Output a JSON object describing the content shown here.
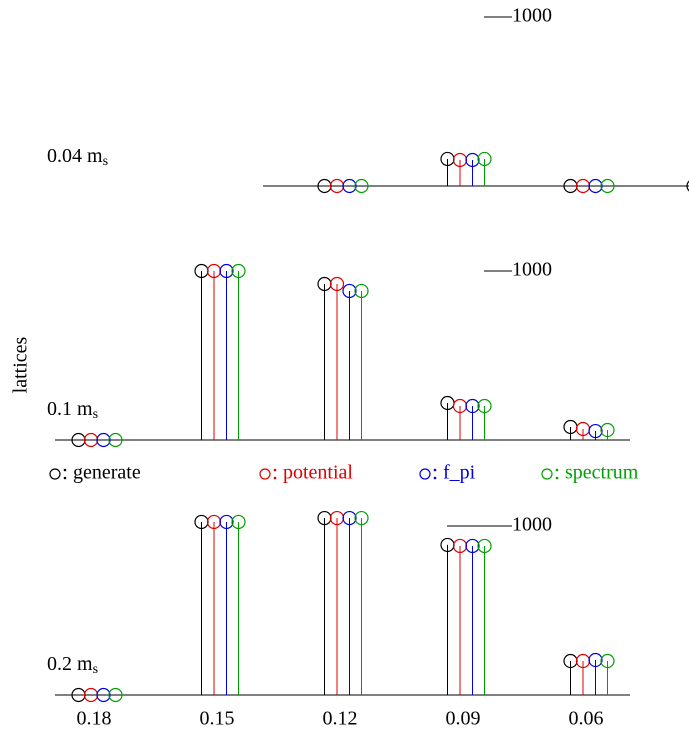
{
  "chart_data": [
    {
      "type": "stem",
      "label": "0.04 m",
      "label_sub": "s",
      "ylim": [
        0,
        1000
      ],
      "yticks": [
        1000
      ],
      "series": [
        {
          "color": "#000000",
          "values": [
            null,
            null,
            0,
            160,
            0,
            0
          ]
        },
        {
          "color": "#e00000",
          "values": [
            null,
            null,
            0,
            154,
            0,
            0
          ]
        },
        {
          "color": "#0000e0",
          "values": [
            null,
            null,
            0,
            154,
            0,
            0
          ]
        },
        {
          "color": "#00a000",
          "values": [
            null,
            null,
            0,
            160,
            0,
            0
          ]
        }
      ]
    },
    {
      "type": "stem",
      "label": "0.1 m",
      "label_sub": "s",
      "ylabel": "lattices",
      "ylim": [
        0,
        1000
      ],
      "yticks": [
        1000
      ],
      "series": [
        {
          "name": "generate",
          "color": "#000000",
          "values": [
            0,
            1000,
            923,
            219,
            77
          ]
        },
        {
          "name": "potential",
          "color": "#e00000",
          "values": [
            0,
            1000,
            923,
            201,
            65
          ]
        },
        {
          "name": "f_pi",
          "color": "#0000e0",
          "values": [
            0,
            1000,
            882,
            201,
            53
          ]
        },
        {
          "name": "spectrum",
          "color": "#00a000",
          "values": [
            0,
            1000,
            882,
            201,
            59
          ]
        }
      ]
    },
    {
      "type": "stem",
      "label": "0.2 m",
      "label_sub": "s",
      "categories": [
        "0.18",
        "0.15",
        "0.12",
        "0.09",
        "0.06"
      ],
      "ylim": [
        0,
        1000
      ],
      "yticks": [
        1000
      ],
      "series": [
        {
          "color": "#000000",
          "values": [
            0,
            1024,
            1047,
            888,
            201
          ]
        },
        {
          "color": "#e00000",
          "values": [
            0,
            1024,
            1047,
            882,
            201
          ]
        },
        {
          "color": "#0000e0",
          "values": [
            0,
            1024,
            1047,
            882,
            207
          ]
        },
        {
          "color": "#00a000",
          "values": [
            0,
            1024,
            1047,
            882,
            201
          ]
        }
      ]
    }
  ]
}
